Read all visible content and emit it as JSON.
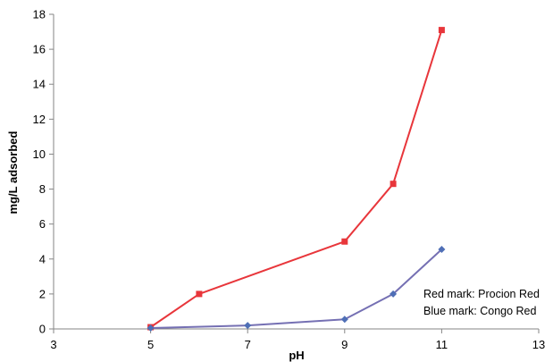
{
  "chart_data": {
    "type": "line",
    "xlabel": "pH",
    "ylabel": "mg/L adsorbed",
    "xlim": [
      3,
      13
    ],
    "ylim": [
      0,
      18
    ],
    "xticks": [
      3,
      5,
      7,
      9,
      11,
      13
    ],
    "yticks": [
      0,
      2,
      4,
      6,
      8,
      10,
      12,
      14,
      16,
      18
    ],
    "grid": false,
    "series": [
      {
        "key": "procion-red",
        "color": "#e8363b",
        "marker": "square",
        "points": [
          [
            5,
            0.1
          ],
          [
            6,
            2.0
          ],
          [
            9,
            5.0
          ],
          [
            10,
            8.3
          ],
          [
            11,
            17.1
          ]
        ]
      },
      {
        "key": "congo-red",
        "color": "#7570b3",
        "marker": "diamond",
        "points": [
          [
            5,
            0.05
          ],
          [
            7,
            0.2
          ],
          [
            9,
            0.55
          ],
          [
            10,
            2.0
          ],
          [
            11,
            4.55
          ]
        ]
      }
    ],
    "annotations": [
      "Red mark: Procion Red",
      "Blue mark: Congo Red"
    ]
  }
}
